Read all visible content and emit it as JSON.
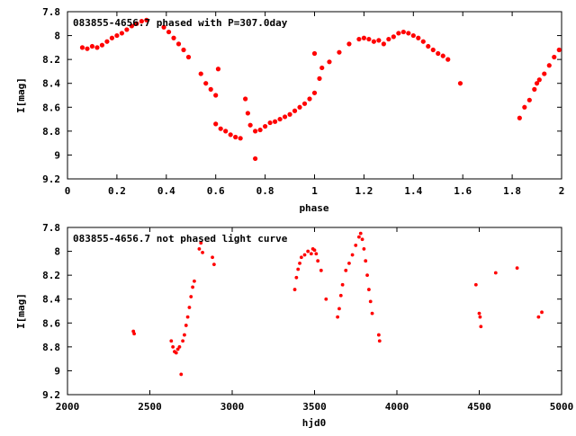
{
  "colors": {
    "points": "#ff0000",
    "axis": "#000000",
    "background": "#ffffff"
  },
  "chart_data": [
    {
      "type": "scatter",
      "title": "083855-4656.7 phased with P=307.0day",
      "xlabel": "phase",
      "ylabel": "I[mag]",
      "xlim": [
        0,
        2
      ],
      "ylim": [
        7.8,
        9.2
      ],
      "y_reversed": true,
      "grid": false,
      "legend": "none",
      "x_ticks": [
        "0",
        "0.2",
        "0.4",
        "0.6",
        "0.8",
        "1",
        "1.2",
        "1.4",
        "1.6",
        "1.8",
        "2"
      ],
      "y_ticks": [
        "7.8",
        "8",
        "8.2",
        "8.4",
        "8.6",
        "8.8",
        "9",
        "9.2"
      ],
      "points": [
        [
          0.06,
          8.1
        ],
        [
          0.08,
          8.11
        ],
        [
          0.1,
          8.09
        ],
        [
          0.12,
          8.1
        ],
        [
          0.14,
          8.08
        ],
        [
          0.16,
          8.05
        ],
        [
          0.18,
          8.02
        ],
        [
          0.2,
          8.0
        ],
        [
          0.22,
          7.98
        ],
        [
          0.24,
          7.95
        ],
        [
          0.26,
          7.92
        ],
        [
          0.28,
          7.9
        ],
        [
          0.3,
          7.88
        ],
        [
          0.32,
          7.87
        ],
        [
          0.39,
          7.93
        ],
        [
          0.41,
          7.97
        ],
        [
          0.43,
          8.02
        ],
        [
          0.45,
          8.07
        ],
        [
          0.47,
          8.12
        ],
        [
          0.49,
          8.18
        ],
        [
          0.54,
          8.32
        ],
        [
          0.56,
          8.4
        ],
        [
          0.58,
          8.45
        ],
        [
          0.6,
          8.5
        ],
        [
          0.61,
          8.28
        ],
        [
          0.6,
          8.74
        ],
        [
          0.62,
          8.78
        ],
        [
          0.64,
          8.8
        ],
        [
          0.66,
          8.83
        ],
        [
          0.68,
          8.85
        ],
        [
          0.7,
          8.86
        ],
        [
          0.72,
          8.53
        ],
        [
          0.73,
          8.65
        ],
        [
          0.74,
          8.75
        ],
        [
          0.76,
          9.03
        ],
        [
          0.76,
          8.8
        ],
        [
          0.78,
          8.79
        ],
        [
          0.8,
          8.76
        ],
        [
          0.82,
          8.73
        ],
        [
          0.84,
          8.72
        ],
        [
          0.86,
          8.7
        ],
        [
          0.88,
          8.68
        ],
        [
          0.9,
          8.66
        ],
        [
          0.92,
          8.63
        ],
        [
          0.94,
          8.6
        ],
        [
          0.96,
          8.57
        ],
        [
          0.98,
          8.53
        ],
        [
          1.0,
          8.48
        ],
        [
          1.0,
          8.15
        ],
        [
          1.02,
          8.36
        ],
        [
          1.03,
          8.27
        ],
        [
          1.06,
          8.22
        ],
        [
          1.1,
          8.14
        ],
        [
          1.14,
          8.07
        ],
        [
          1.18,
          8.03
        ],
        [
          1.2,
          8.02
        ],
        [
          1.22,
          8.03
        ],
        [
          1.24,
          8.05
        ],
        [
          1.26,
          8.04
        ],
        [
          1.28,
          8.07
        ],
        [
          1.3,
          8.03
        ],
        [
          1.32,
          8.01
        ],
        [
          1.34,
          7.98
        ],
        [
          1.36,
          7.97
        ],
        [
          1.38,
          7.98
        ],
        [
          1.4,
          8.0
        ],
        [
          1.42,
          8.02
        ],
        [
          1.44,
          8.05
        ],
        [
          1.46,
          8.09
        ],
        [
          1.48,
          8.12
        ],
        [
          1.5,
          8.15
        ],
        [
          1.52,
          8.17
        ],
        [
          1.54,
          8.2
        ],
        [
          1.59,
          8.4
        ],
        [
          1.83,
          8.69
        ],
        [
          1.85,
          8.6
        ],
        [
          1.87,
          8.54
        ],
        [
          1.89,
          8.45
        ],
        [
          1.9,
          8.4
        ],
        [
          1.91,
          8.37
        ],
        [
          1.93,
          8.32
        ],
        [
          1.95,
          8.25
        ],
        [
          1.97,
          8.18
        ],
        [
          1.99,
          8.12
        ]
      ]
    },
    {
      "type": "scatter",
      "title": "083855-4656.7 not phased light curve",
      "xlabel": "hjd0",
      "ylabel": "I[mag]",
      "xlim": [
        2000,
        5000
      ],
      "ylim": [
        7.8,
        9.2
      ],
      "y_reversed": true,
      "grid": false,
      "legend": "none",
      "x_ticks": [
        "2000",
        "2500",
        "3000",
        "3500",
        "4000",
        "4500",
        "5000"
      ],
      "y_ticks": [
        "7.8",
        "8",
        "8.2",
        "8.4",
        "8.6",
        "8.8",
        "9",
        "9.2"
      ],
      "points": [
        [
          2400,
          8.67
        ],
        [
          2405,
          8.69
        ],
        [
          2630,
          8.75
        ],
        [
          2640,
          8.8
        ],
        [
          2650,
          8.84
        ],
        [
          2660,
          8.85
        ],
        [
          2670,
          8.82
        ],
        [
          2680,
          8.8
        ],
        [
          2690,
          9.03
        ],
        [
          2700,
          8.75
        ],
        [
          2710,
          8.7
        ],
        [
          2720,
          8.62
        ],
        [
          2730,
          8.55
        ],
        [
          2740,
          8.47
        ],
        [
          2750,
          8.38
        ],
        [
          2760,
          8.3
        ],
        [
          2770,
          8.25
        ],
        [
          2800,
          7.98
        ],
        [
          2810,
          7.93
        ],
        [
          2820,
          8.01
        ],
        [
          2880,
          8.05
        ],
        [
          2890,
          8.11
        ],
        [
          3380,
          8.32
        ],
        [
          3390,
          8.22
        ],
        [
          3400,
          8.15
        ],
        [
          3410,
          8.1
        ],
        [
          3420,
          8.05
        ],
        [
          3440,
          8.03
        ],
        [
          3460,
          8.0
        ],
        [
          3480,
          8.02
        ],
        [
          3490,
          7.98
        ],
        [
          3500,
          7.99
        ],
        [
          3510,
          8.02
        ],
        [
          3520,
          8.08
        ],
        [
          3540,
          8.16
        ],
        [
          3570,
          8.4
        ],
        [
          3640,
          8.55
        ],
        [
          3650,
          8.48
        ],
        [
          3660,
          8.37
        ],
        [
          3670,
          8.28
        ],
        [
          3690,
          8.16
        ],
        [
          3710,
          8.1
        ],
        [
          3730,
          8.03
        ],
        [
          3750,
          7.95
        ],
        [
          3770,
          7.88
        ],
        [
          3780,
          7.85
        ],
        [
          3790,
          7.9
        ],
        [
          3800,
          7.98
        ],
        [
          3810,
          8.08
        ],
        [
          3820,
          8.2
        ],
        [
          3830,
          8.32
        ],
        [
          3840,
          8.42
        ],
        [
          3850,
          8.52
        ],
        [
          3890,
          8.7
        ],
        [
          3895,
          8.75
        ],
        [
          4480,
          8.28
        ],
        [
          4500,
          8.52
        ],
        [
          4505,
          8.55
        ],
        [
          4510,
          8.63
        ],
        [
          4600,
          8.18
        ],
        [
          4730,
          8.14
        ],
        [
          4860,
          8.55
        ],
        [
          4880,
          8.51
        ]
      ]
    }
  ]
}
